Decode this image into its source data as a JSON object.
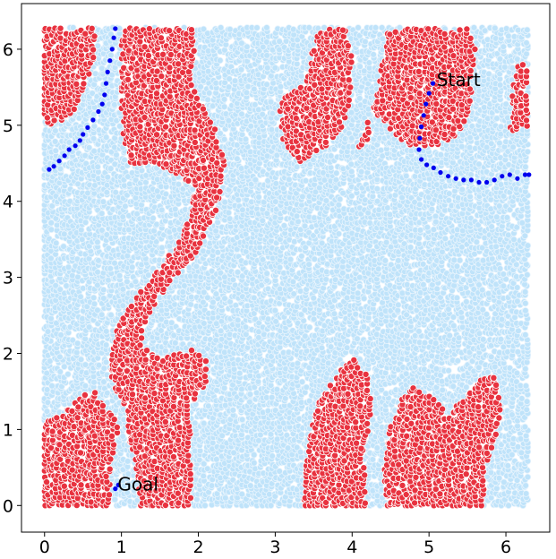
{
  "chart_data": {
    "type": "scatter",
    "title": "",
    "xlabel": "",
    "ylabel": "",
    "xlim": [
      -0.3,
      6.57
    ],
    "ylim": [
      -0.35,
      6.6
    ],
    "xticks": [
      "0",
      "1",
      "2",
      "3",
      "4",
      "5",
      "6"
    ],
    "yticks": [
      "0",
      "1",
      "2",
      "3",
      "4",
      "5",
      "6"
    ],
    "grid": false,
    "legend": "none",
    "colors": {
      "free": "#bfe3fa",
      "free_edge": "#e8f4fd",
      "obstacle": "#e8323f",
      "obstacle_edge": "#ffffff",
      "path": "#0000ee"
    },
    "obstacle_regions": [
      [
        [
          0.0,
          6.28
        ],
        [
          0.62,
          6.28
        ],
        [
          0.68,
          6.1
        ],
        [
          0.62,
          5.8
        ],
        [
          0.5,
          5.4
        ],
        [
          0.35,
          5.15
        ],
        [
          0.12,
          5.0
        ],
        [
          0.0,
          5.05
        ]
      ],
      [
        [
          1.0,
          6.28
        ],
        [
          1.92,
          6.28
        ],
        [
          1.98,
          6.0
        ],
        [
          1.9,
          5.6
        ],
        [
          1.98,
          5.4
        ],
        [
          2.2,
          5.0
        ],
        [
          2.35,
          4.5
        ],
        [
          2.28,
          4.0
        ],
        [
          2.15,
          3.7
        ],
        [
          1.95,
          3.3
        ],
        [
          1.65,
          2.95
        ],
        [
          1.4,
          2.6
        ],
        [
          1.25,
          2.25
        ],
        [
          1.35,
          2.0
        ],
        [
          1.6,
          1.95
        ],
        [
          1.9,
          2.05
        ],
        [
          2.1,
          1.95
        ],
        [
          2.1,
          1.6
        ],
        [
          1.9,
          1.3
        ],
        [
          1.9,
          0.0
        ],
        [
          1.25,
          0.0
        ],
        [
          1.2,
          0.45
        ],
        [
          1.1,
          0.9
        ],
        [
          1.05,
          1.3
        ],
        [
          0.9,
          1.5
        ],
        [
          0.85,
          1.9
        ],
        [
          0.95,
          2.35
        ],
        [
          1.2,
          2.75
        ],
        [
          1.45,
          3.05
        ],
        [
          1.7,
          3.4
        ],
        [
          1.9,
          3.8
        ],
        [
          1.95,
          4.2
        ],
        [
          1.75,
          4.35
        ],
        [
          1.4,
          4.5
        ],
        [
          1.1,
          4.45
        ],
        [
          1.0,
          4.9
        ],
        [
          1.0,
          5.6
        ]
      ],
      [
        [
          0.0,
          0.0
        ],
        [
          0.85,
          0.0
        ],
        [
          0.85,
          0.55
        ],
        [
          0.95,
          0.9
        ],
        [
          0.95,
          1.15
        ],
        [
          0.8,
          1.25
        ],
        [
          0.65,
          1.5
        ],
        [
          0.45,
          1.45
        ],
        [
          0.25,
          1.2
        ],
        [
          0.0,
          1.1
        ]
      ],
      [
        [
          3.4,
          5.6
        ],
        [
          3.55,
          6.25
        ],
        [
          3.95,
          6.28
        ],
        [
          4.0,
          5.8
        ],
        [
          3.95,
          5.1
        ],
        [
          3.7,
          4.75
        ],
        [
          3.3,
          4.5
        ],
        [
          3.1,
          4.8
        ],
        [
          3.05,
          5.3
        ]
      ],
      [
        [
          4.3,
          5.3
        ],
        [
          4.45,
          6.25
        ],
        [
          5.0,
          6.28
        ],
        [
          5.3,
          6.25
        ],
        [
          5.5,
          6.28
        ],
        [
          5.6,
          6.0
        ],
        [
          5.55,
          5.3
        ],
        [
          5.4,
          4.9
        ],
        [
          5.05,
          4.7
        ],
        [
          4.7,
          4.75
        ],
        [
          4.45,
          5.0
        ],
        [
          4.25,
          5.2
        ],
        [
          4.2,
          4.75
        ],
        [
          4.05,
          4.65
        ]
      ],
      [
        [
          6.05,
          4.9
        ],
        [
          6.1,
          5.6
        ],
        [
          6.15,
          5.8
        ],
        [
          6.28,
          5.8
        ],
        [
          6.28,
          4.95
        ]
      ],
      [
        [
          3.35,
          0.0
        ],
        [
          4.2,
          0.0
        ],
        [
          4.15,
          0.6
        ],
        [
          4.25,
          1.3
        ],
        [
          4.2,
          1.75
        ],
        [
          4.0,
          1.95
        ],
        [
          3.8,
          1.75
        ],
        [
          3.6,
          1.45
        ],
        [
          3.45,
          1.0
        ],
        [
          3.4,
          0.5
        ]
      ],
      [
        [
          4.45,
          0.0
        ],
        [
          5.7,
          0.0
        ],
        [
          5.75,
          0.5
        ],
        [
          5.9,
          1.0
        ],
        [
          5.95,
          1.5
        ],
        [
          5.8,
          1.75
        ],
        [
          5.5,
          1.5
        ],
        [
          5.25,
          1.2
        ],
        [
          5.0,
          1.45
        ],
        [
          4.8,
          1.55
        ],
        [
          4.6,
          1.35
        ],
        [
          4.45,
          0.9
        ],
        [
          4.4,
          0.4
        ]
      ]
    ],
    "path_points": [
      [
        0.92,
        6.27
      ],
      [
        0.9,
        6.15
      ],
      [
        0.88,
        6.0
      ],
      [
        0.85,
        5.85
      ],
      [
        0.82,
        5.7
      ],
      [
        0.8,
        5.55
      ],
      [
        0.78,
        5.4
      ],
      [
        0.75,
        5.28
      ],
      [
        0.7,
        5.18
      ],
      [
        0.63,
        5.07
      ],
      [
        0.56,
        4.97
      ],
      [
        0.5,
        4.88
      ],
      [
        0.46,
        4.8
      ],
      [
        0.4,
        4.73
      ],
      [
        0.32,
        4.68
      ],
      [
        0.26,
        4.6
      ],
      [
        0.19,
        4.53
      ],
      [
        0.12,
        4.46
      ],
      [
        0.06,
        4.42
      ],
      [
        5.05,
        5.55
      ],
      [
        5.0,
        5.42
      ],
      [
        4.96,
        5.28
      ],
      [
        4.93,
        5.13
      ],
      [
        4.9,
        4.98
      ],
      [
        4.88,
        4.83
      ],
      [
        4.87,
        4.68
      ],
      [
        4.9,
        4.55
      ],
      [
        4.97,
        4.48
      ],
      [
        5.06,
        4.44
      ],
      [
        5.15,
        4.38
      ],
      [
        5.25,
        4.33
      ],
      [
        5.35,
        4.3
      ],
      [
        5.45,
        4.28
      ],
      [
        5.55,
        4.28
      ],
      [
        5.65,
        4.25
      ],
      [
        5.75,
        4.25
      ],
      [
        5.85,
        4.28
      ],
      [
        5.95,
        4.33
      ],
      [
        6.05,
        4.35
      ],
      [
        6.15,
        4.3
      ],
      [
        6.25,
        4.35
      ],
      [
        6.3,
        4.35
      ],
      [
        0.92,
        0.22
      ],
      [
        0.96,
        0.27
      ]
    ],
    "annotations": [
      {
        "text": "Start",
        "x": 5.1,
        "y": 5.6
      },
      {
        "text": "Goal",
        "x": 0.95,
        "y": 0.28
      }
    ]
  }
}
